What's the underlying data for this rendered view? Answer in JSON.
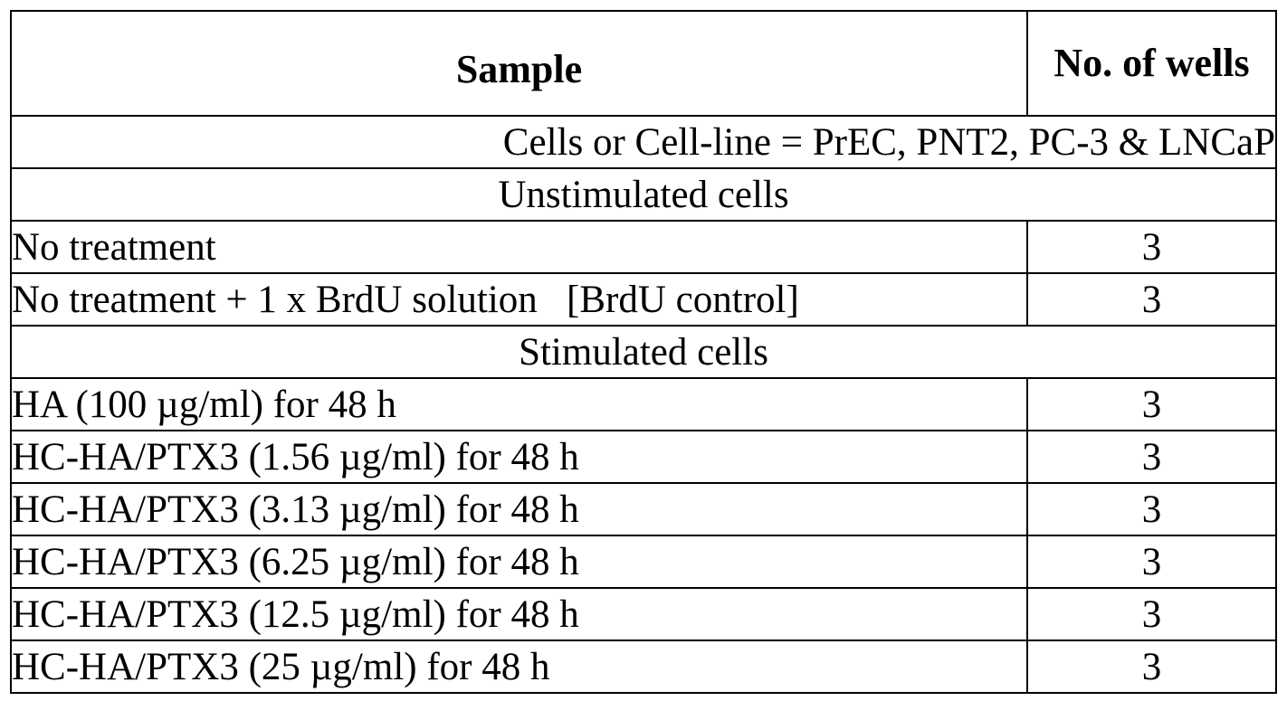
{
  "table": {
    "headers": {
      "sample": "Sample",
      "wells": "No. of wells"
    },
    "cell_line_row": "Cells or Cell-line = PrEC, PNT2, PC-3 & LNCaP",
    "sections": [
      {
        "title": "Unstimulated cells",
        "rows": [
          {
            "sample": "No treatment",
            "wells": "3"
          },
          {
            "sample": "No treatment + 1 x BrdU solution   [BrdU control]",
            "wells": "3"
          }
        ]
      },
      {
        "title": "Stimulated cells",
        "rows": [
          {
            "sample": "HA (100 µg/ml) for 48 h",
            "wells": "3"
          },
          {
            "sample": "HC-HA/PTX3 (1.56 µg/ml) for 48 h",
            "wells": "3"
          },
          {
            "sample": "HC-HA/PTX3 (3.13 µg/ml) for 48 h",
            "wells": "3"
          },
          {
            "sample": "HC-HA/PTX3 (6.25 µg/ml) for 48 h",
            "wells": "3"
          },
          {
            "sample": "HC-HA/PTX3 (12.5 µg/ml) for 48 h",
            "wells": "3"
          },
          {
            "sample": "HC-HA/PTX3 (25 µg/ml) for 48 h",
            "wells": "3"
          }
        ]
      }
    ]
  }
}
